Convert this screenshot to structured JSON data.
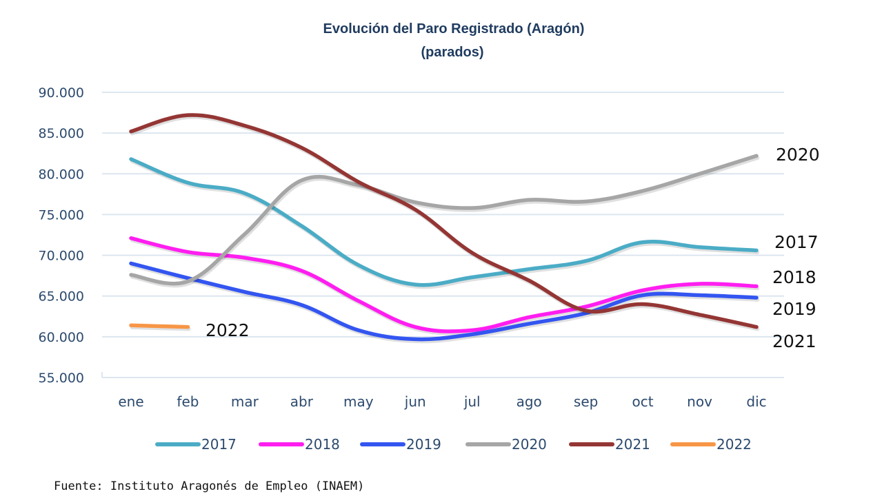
{
  "chart_data": {
    "type": "line",
    "title": "Evolución del Paro Registrado (Aragón)",
    "subtitle": "(parados)",
    "xlabel": "",
    "ylabel": "",
    "categories": [
      "ene",
      "feb",
      "mar",
      "abr",
      "may",
      "jun",
      "jul",
      "ago",
      "sep",
      "oct",
      "nov",
      "dic"
    ],
    "ylim": [
      55000,
      90000
    ],
    "yticks": [
      90000,
      85000,
      80000,
      75000,
      70000,
      65000,
      60000,
      55000
    ],
    "ytick_labels": [
      "90.000",
      "85.000",
      "80.000",
      "75.000",
      "70.000",
      "65.000",
      "60.000",
      "55.000"
    ],
    "grid": true,
    "legend_position": "bottom",
    "series": [
      {
        "name": "2017",
        "color": "#4bacc6",
        "end_label": "2017",
        "values": [
          81800,
          78900,
          77600,
          73600,
          68800,
          66400,
          67300,
          68300,
          69300,
          71600,
          71000,
          70600
        ]
      },
      {
        "name": "2018",
        "color": "#ff1ef0",
        "end_label": "2018",
        "values": [
          72100,
          70400,
          69700,
          68100,
          64400,
          61200,
          60800,
          62400,
          63700,
          65700,
          66500,
          66200
        ]
      },
      {
        "name": "2019",
        "color": "#3355f0",
        "end_label": "2019",
        "values": [
          69000,
          67200,
          65500,
          63900,
          60800,
          59700,
          60300,
          61600,
          62900,
          65100,
          65100,
          64800
        ]
      },
      {
        "name": "2020",
        "color": "#a6a6a6",
        "end_label": "2020",
        "values": [
          67600,
          66800,
          72600,
          79200,
          78600,
          76500,
          75800,
          76800,
          76600,
          77900,
          80000,
          82200
        ]
      },
      {
        "name": "2021",
        "color": "#943634",
        "end_label": "2021",
        "values": [
          85200,
          87200,
          85900,
          83200,
          79000,
          75600,
          70300,
          66900,
          63200,
          64000,
          62700,
          61200
        ]
      },
      {
        "name": "2022",
        "color": "#f79646",
        "end_label": "2022",
        "values": [
          61400,
          61200,
          null,
          null,
          null,
          null,
          null,
          null,
          null,
          null,
          null,
          null
        ]
      }
    ],
    "source": "Fuente: Instituto Aragonés de Empleo (INAEM)"
  }
}
